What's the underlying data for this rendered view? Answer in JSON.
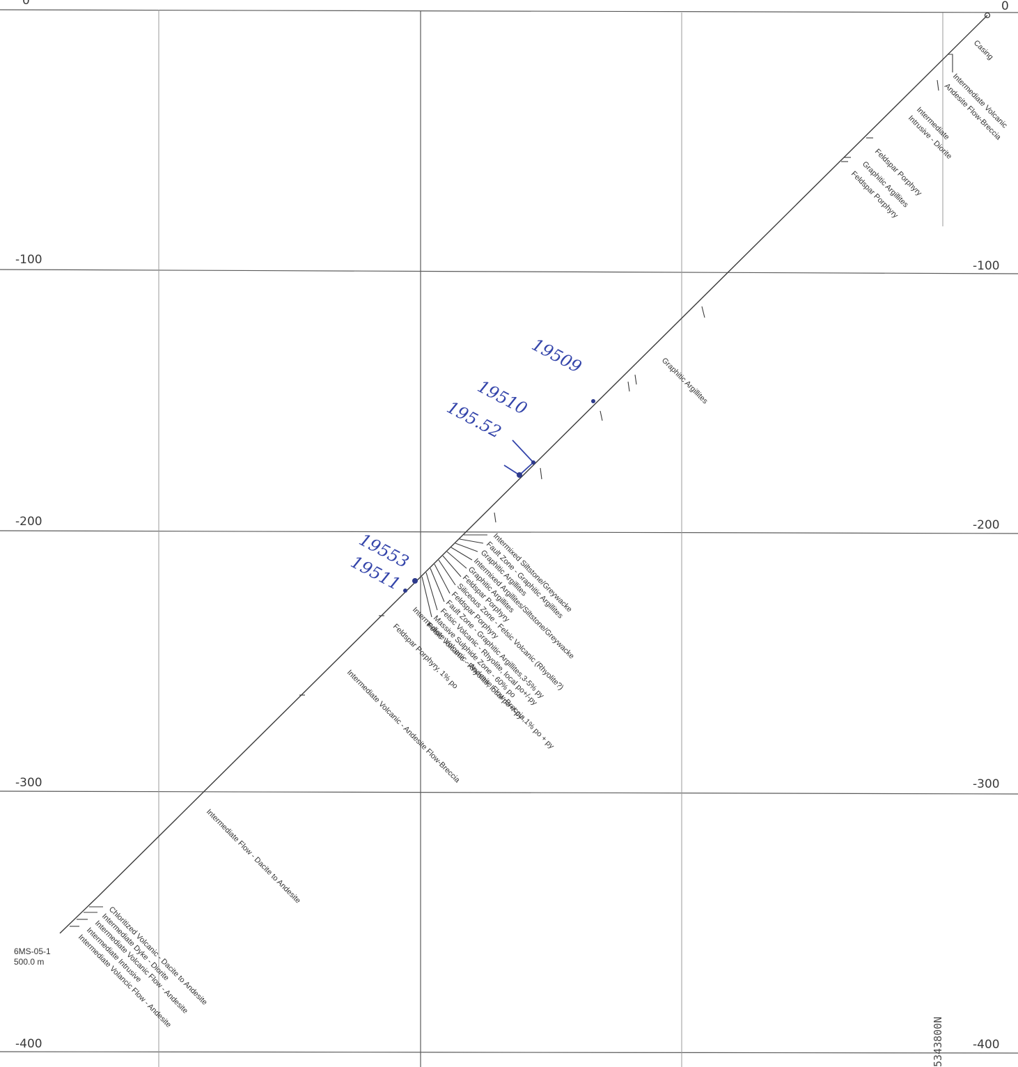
{
  "section": {
    "elevations": {
      "left": [
        "0",
        "-100",
        "-200",
        "-300",
        "-400"
      ],
      "right": [
        "0",
        "-100",
        "-200",
        "-300",
        "-400"
      ]
    },
    "northing": "5343800N",
    "collar": {
      "hole_id": "6MS-05-1",
      "depth": "500.0 m"
    },
    "units": [
      "Casing",
      "Intermediate Volcanic",
      "Andesite Flow-Breccia",
      "Intermediate",
      "Intrusive - Diorite",
      "Feldspar Porphyry",
      "Graphitic Argillites",
      "Feldspar Porphyry",
      "Graphitic Argillites",
      "Intermixed Siltstone/Greywacke",
      "Fault Zone - Graphitic Argillites",
      "Graphitic Argillites",
      "Intermixed Argillites/Siltstone/Greywacke",
      "Graphitic Argillites",
      "Feldspar Porphyry",
      "Siliceous Zone - Felsic Volcanic (Rhyolite?)",
      "Feldspar Porphyry",
      "Fault Zone - Graphitic Argillites,3-5% py",
      "Felsic Volcanic - Rhyolite, local po+/-py",
      "Massive Sulphide Zone - 60% po",
      "Felsic Volcanic - Rhyolite, local po+/-py",
      "Intermediate Volcanic - Andesite Flow-Breccia,1% po + py",
      "Feldspar Porphyry, 1% po",
      "Intermediate Volcanic - Andesite Flow-Breccia",
      "Intermediate Flow - Dacite to Andesite",
      "Chloritized Volcanic - Dacite to Andesite",
      "Intermediate Dyke - Diorite",
      "Intermediate Volcanic Flow - Andesite",
      "Intermediate Intrusive",
      "Intermediate Volancic Flow - Andesite"
    ],
    "annotations": [
      "19509",
      "19510",
      "195.52",
      "19553",
      "19511"
    ],
    "colors": {
      "ink": "#3a3a3a",
      "grid": "#5a5a5a",
      "handwriting": "#3344aa"
    }
  }
}
